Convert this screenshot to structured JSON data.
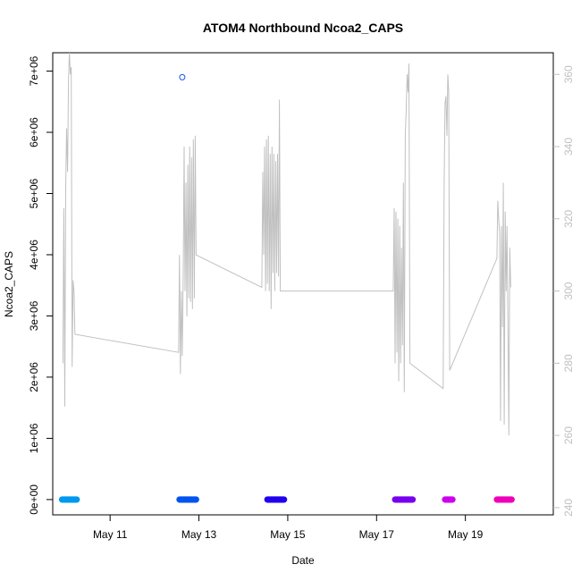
{
  "chart_data": {
    "type": "scatter",
    "title": "ATOM4 Northbound Ncoa2_CAPS",
    "xlabel": "Date",
    "ylabel": "Ncoa2_CAPS",
    "x_axis": {
      "type": "date",
      "range": [
        "2016-05-09 17:00",
        "2016-05-20 23:30"
      ],
      "ticks": [
        "2016-05-11",
        "2016-05-13",
        "2016-05-15",
        "2016-05-17",
        "2016-05-19"
      ],
      "tick_labels": [
        "May 11",
        "May 13",
        "May 15",
        "May 17",
        "May 19"
      ]
    },
    "y_axis": {
      "range": [
        -250000,
        7300000
      ],
      "ticks": [
        0,
        1000000,
        2000000,
        3000000,
        4000000,
        5000000,
        6000000,
        7000000
      ],
      "tick_labels": [
        "0e+00",
        "1e+06",
        "2e+06",
        "3e+06",
        "4e+06",
        "5e+06",
        "6e+06",
        "7e+06"
      ]
    },
    "y2_axis": {
      "range": [
        238,
        366
      ],
      "ticks": [
        240,
        260,
        280,
        300,
        320,
        340,
        360
      ],
      "tick_labels": [
        "240",
        "260",
        "280",
        "300",
        "320",
        "340",
        "360"
      ],
      "color": "#c0c0c0"
    },
    "grid": false,
    "series": [
      {
        "marker": "circle-open",
        "axis": "left",
        "color_note": "color varies by date segment",
        "segments": [
          {
            "start": "2016-05-09 22:00",
            "end": "2016-05-10 06:00",
            "value": 0,
            "color": "#0099ee"
          },
          {
            "start": "2016-05-12 13:30",
            "end": "2016-05-12 22:30",
            "value": 0,
            "color": "#0055ee"
          },
          {
            "start": "2016-05-14 13:00",
            "end": "2016-05-14 22:00",
            "value": 0,
            "color": "#2200ee"
          },
          {
            "start": "2016-05-17 10:00",
            "end": "2016-05-17 19:30",
            "value": 0,
            "color": "#7700ee"
          },
          {
            "start": "2016-05-18 13:00",
            "end": "2016-05-18 17:00",
            "value": 0,
            "color": "#cc00ee"
          },
          {
            "start": "2016-05-19 17:00",
            "end": "2016-05-20 01:00",
            "value": 0,
            "color": "#ee00bb"
          }
        ],
        "outliers": [
          {
            "x": "2016-05-12 15:00",
            "y": 6900000,
            "color": "#1155ee"
          }
        ]
      },
      {
        "marker": "line",
        "axis": "right",
        "color": "#c0c0c0",
        "points": [
          [
            "2016-05-09 22:30",
            280
          ],
          [
            "2016-05-09 23:00",
            323
          ],
          [
            "2016-05-09 23:30",
            268
          ],
          [
            "2016-05-10 00:00",
            328
          ],
          [
            "2016-05-10 00:30",
            345
          ],
          [
            "2016-05-10 01:00",
            333
          ],
          [
            "2016-05-10 01:30",
            358
          ],
          [
            "2016-05-10 02:00",
            366
          ],
          [
            "2016-05-10 02:30",
            360
          ],
          [
            "2016-05-10 03:00",
            362
          ],
          [
            "2016-05-10 03:30",
            279
          ],
          [
            "2016-05-10 04:00",
            303
          ],
          [
            "2016-05-10 04:30",
            300
          ],
          [
            "2016-05-10 05:00",
            288
          ],
          [
            "2016-05-12 13:00",
            283
          ],
          [
            "2016-05-12 13:30",
            310
          ],
          [
            "2016-05-12 14:00",
            277
          ],
          [
            "2016-05-12 14:30",
            300
          ],
          [
            "2016-05-12 15:00",
            282
          ],
          [
            "2016-05-12 15:30",
            305
          ],
          [
            "2016-05-12 16:00",
            340
          ],
          [
            "2016-05-12 16:30",
            300
          ],
          [
            "2016-05-12 17:00",
            330
          ],
          [
            "2016-05-12 17:30",
            293
          ],
          [
            "2016-05-12 18:00",
            335
          ],
          [
            "2016-05-12 18:30",
            298
          ],
          [
            "2016-05-12 19:00",
            340
          ],
          [
            "2016-05-12 19:30",
            297
          ],
          [
            "2016-05-12 20:00",
            337
          ],
          [
            "2016-05-12 20:30",
            295
          ],
          [
            "2016-05-12 21:00",
            342
          ],
          [
            "2016-05-12 21:30",
            298
          ],
          [
            "2016-05-12 22:00",
            343
          ],
          [
            "2016-05-12 22:30",
            310
          ],
          [
            "2016-05-14 10:00",
            301
          ],
          [
            "2016-05-14 10:30",
            333
          ],
          [
            "2016-05-14 11:00",
            310
          ],
          [
            "2016-05-14 11:30",
            340
          ],
          [
            "2016-05-14 12:00",
            300
          ],
          [
            "2016-05-14 12:30",
            342
          ],
          [
            "2016-05-14 13:00",
            302
          ],
          [
            "2016-05-14 13:30",
            343
          ],
          [
            "2016-05-14 14:00",
            300
          ],
          [
            "2016-05-14 14:30",
            338
          ],
          [
            "2016-05-14 15:00",
            295
          ],
          [
            "2016-05-14 15:30",
            340
          ],
          [
            "2016-05-14 16:00",
            305
          ],
          [
            "2016-05-14 16:30",
            338
          ],
          [
            "2016-05-14 17:00",
            300
          ],
          [
            "2016-05-14 17:30",
            336
          ],
          [
            "2016-05-14 18:00",
            305
          ],
          [
            "2016-05-14 18:30",
            338
          ],
          [
            "2016-05-14 19:00",
            304
          ],
          [
            "2016-05-14 19:30",
            353
          ],
          [
            "2016-05-14 20:00",
            300
          ],
          [
            "2016-05-17 09:00",
            300
          ],
          [
            "2016-05-17 09:30",
            323
          ],
          [
            "2016-05-17 10:00",
            280
          ],
          [
            "2016-05-17 10:30",
            322
          ],
          [
            "2016-05-17 11:00",
            283
          ],
          [
            "2016-05-17 11:30",
            320
          ],
          [
            "2016-05-17 12:00",
            275
          ],
          [
            "2016-05-17 12:30",
            318
          ],
          [
            "2016-05-17 13:00",
            280
          ],
          [
            "2016-05-17 13:30",
            312
          ],
          [
            "2016-05-17 14:00",
            285
          ],
          [
            "2016-05-17 14:30",
            330
          ],
          [
            "2016-05-17 15:00",
            272
          ],
          [
            "2016-05-17 15:30",
            343
          ],
          [
            "2016-05-17 16:00",
            350
          ],
          [
            "2016-05-17 16:30",
            360
          ],
          [
            "2016-05-17 17:00",
            355
          ],
          [
            "2016-05-17 17:30",
            363
          ],
          [
            "2016-05-17 18:00",
            280
          ],
          [
            "2016-05-18 12:00",
            273
          ],
          [
            "2016-05-18 12:30",
            330
          ],
          [
            "2016-05-18 13:00",
            352
          ],
          [
            "2016-05-18 13:30",
            354
          ],
          [
            "2016-05-18 14:00",
            343
          ],
          [
            "2016-05-18 14:30",
            360
          ],
          [
            "2016-05-18 15:00",
            355
          ],
          [
            "2016-05-18 15:30",
            278
          ],
          [
            "2016-05-19 17:00",
            309
          ],
          [
            "2016-05-19 17:30",
            325
          ],
          [
            "2016-05-19 18:00",
            320
          ],
          [
            "2016-05-19 18:30",
            316
          ],
          [
            "2016-05-19 19:00",
            264
          ],
          [
            "2016-05-19 19:30",
            318
          ],
          [
            "2016-05-19 20:00",
            290
          ],
          [
            "2016-05-19 20:30",
            330
          ],
          [
            "2016-05-19 21:00",
            263
          ],
          [
            "2016-05-19 21:30",
            322
          ],
          [
            "2016-05-19 22:00",
            300
          ],
          [
            "2016-05-19 22:30",
            318
          ],
          [
            "2016-05-19 23:00",
            290
          ],
          [
            "2016-05-19 23:30",
            260
          ],
          [
            "2016-05-20 00:00",
            312
          ],
          [
            "2016-05-20 00:30",
            301
          ]
        ]
      }
    ]
  }
}
